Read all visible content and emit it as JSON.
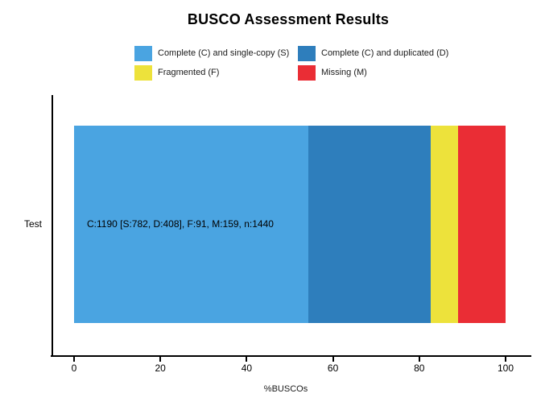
{
  "title": "BUSCO Assessment Results",
  "legend": {
    "items": [
      {
        "label": "Complete (C) and single-copy (S)",
        "color": "#4AA4E1"
      },
      {
        "label": "Complete (C) and duplicated (D)",
        "color": "#2E7EBC"
      },
      {
        "label": "Fragmented (F)",
        "color": "#EDE23B"
      },
      {
        "label": "Missing (M)",
        "color": "#EA2D35"
      }
    ]
  },
  "chart_data": {
    "type": "bar",
    "orientation": "horizontal",
    "stacked": true,
    "title": "BUSCO Assessment Results",
    "categories": [
      "Test"
    ],
    "series": [
      {
        "name": "Complete (C) and single-copy (S)",
        "counts": [
          782
        ],
        "percent": [
          54.31
        ],
        "color": "#4AA4E1"
      },
      {
        "name": "Complete (C) and duplicated (D)",
        "counts": [
          408
        ],
        "percent": [
          28.33
        ],
        "color": "#2E7EBC"
      },
      {
        "name": "Fragmented (F)",
        "counts": [
          91
        ],
        "percent": [
          6.32
        ],
        "color": "#EDE23B"
      },
      {
        "name": "Missing (M)",
        "counts": [
          159
        ],
        "percent": [
          11.04
        ],
        "color": "#EA2D35"
      }
    ],
    "total_buscos": 1440,
    "complete_total": 1190,
    "bar_annotations": [
      "C:1190 [S:782, D:408], F:91, M:159, n:1440"
    ],
    "xlabel": "%BUSCOs",
    "ylabel": "",
    "xlim": [
      0,
      100
    ],
    "x_ticks": [
      0,
      20,
      40,
      60,
      80,
      100
    ],
    "legend_position": "top",
    "grid": false,
    "axis_color": "#000000",
    "background_color": "#FFFFFF"
  }
}
